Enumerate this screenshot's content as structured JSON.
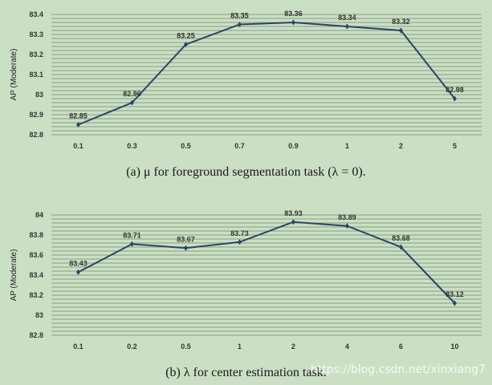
{
  "chart_data": [
    {
      "type": "line",
      "ylabel": "AP (Moderate)",
      "categories": [
        "0.1",
        "0.3",
        "0.5",
        "0.7",
        "0.9",
        "1",
        "2",
        "5"
      ],
      "series": [
        {
          "values": [
            82.85,
            82.96,
            83.25,
            83.35,
            83.36,
            83.34,
            83.32,
            82.98
          ]
        }
      ],
      "data_labels": [
        "82.85",
        "82.96",
        "83.25",
        "83.35",
        "83.36",
        "83.34",
        "83.32",
        "82.98"
      ],
      "ylim": [
        82.8,
        83.4
      ],
      "yticks": [
        82.8,
        82.9,
        83.0,
        83.1,
        83.2,
        83.3,
        83.4
      ],
      "ytick_labels": [
        "82.8",
        "82.9",
        "83",
        "83.1",
        "83.2",
        "83.3",
        "83.4"
      ],
      "minor_grid_step": 0.02,
      "grid": true,
      "caption": "(a) μ for foreground segmentation task (λ = 0).",
      "line_color": "#2b4468"
    },
    {
      "type": "line",
      "ylabel": "AP (Moderate)",
      "categories": [
        "0.1",
        "0.2",
        "0.5",
        "1",
        "2",
        "4",
        "6",
        "10"
      ],
      "series": [
        {
          "values": [
            83.43,
            83.71,
            83.67,
            83.73,
            83.93,
            83.89,
            83.68,
            83.12
          ]
        }
      ],
      "data_labels": [
        "83.43",
        "83.71",
        "83.67",
        "83.73",
        "83.93",
        "83.89",
        "83.68",
        "83.12"
      ],
      "ylim": [
        82.8,
        84.0
      ],
      "yticks": [
        82.8,
        83.0,
        83.2,
        83.4,
        83.6,
        83.8,
        84.0
      ],
      "ytick_labels": [
        "82.8",
        "83",
        "83.2",
        "83.4",
        "83.6",
        "83.8",
        "84"
      ],
      "minor_grid_step": 0.04,
      "grid": true,
      "caption": "(b) λ for center estimation task.",
      "line_color": "#2b4468"
    }
  ],
  "watermark": "https://blog.csdn.net/xinxiang7"
}
